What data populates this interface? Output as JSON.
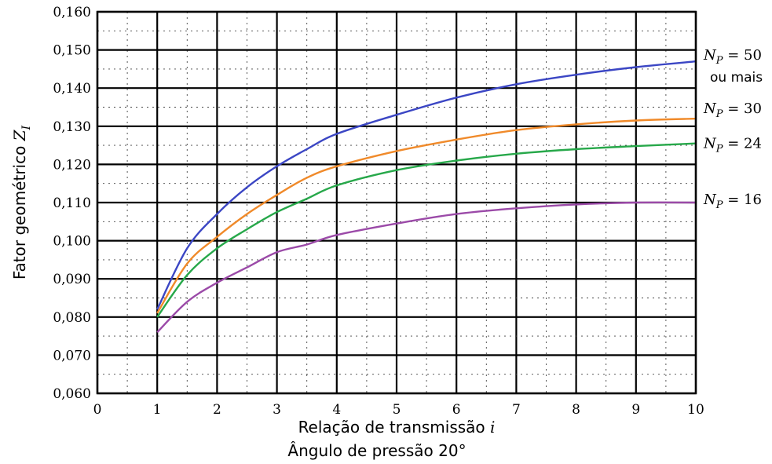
{
  "chart_data": {
    "type": "line",
    "title": "",
    "xlabel": "Relação de transmissão i",
    "xlabel_text": "Relação de transmissão",
    "xlabel_symbol": "i",
    "xlabel2": "Ângulo de pressão 20°",
    "ylabel": "Fator geométrico Z_I",
    "ylabel_text": "Fator geométrico",
    "ylabel_symbol": "Z",
    "ylabel_subscript": "I",
    "xlim": [
      0,
      10
    ],
    "ylim": [
      0.06,
      0.16
    ],
    "x_ticks": [
      "0",
      "1",
      "2",
      "3",
      "4",
      "5",
      "6",
      "7",
      "8",
      "9",
      "10"
    ],
    "y_ticks": [
      "0,060",
      "0,070",
      "0,080",
      "0,090",
      "0,100",
      "0,110",
      "0,120",
      "0,130",
      "0,140",
      "0,150",
      "0,160"
    ],
    "grid": true,
    "legend": "right-inline",
    "series": [
      {
        "name": "N_P = 50 ou mais",
        "label_main": "N",
        "label_sub": "P",
        "label_eq": " = 50",
        "label_extra": "ou mais",
        "color": "#3b46c4",
        "x": [
          1,
          1.5,
          2,
          2.5,
          3,
          3.5,
          4,
          5,
          6,
          7,
          8,
          9,
          10
        ],
        "y": [
          0.082,
          0.098,
          0.107,
          0.114,
          0.1195,
          0.124,
          0.128,
          0.133,
          0.1375,
          0.141,
          0.1435,
          0.1455,
          0.147
        ]
      },
      {
        "name": "N_P = 30",
        "label_main": "N",
        "label_sub": "P",
        "label_eq": " = 30",
        "label_extra": "",
        "color": "#f08a2a",
        "x": [
          1,
          1.5,
          2,
          2.5,
          3,
          3.5,
          4,
          5,
          6,
          7,
          8,
          9,
          10
        ],
        "y": [
          0.081,
          0.094,
          0.101,
          0.107,
          0.112,
          0.1165,
          0.1195,
          0.1235,
          0.1265,
          0.129,
          0.1305,
          0.1315,
          0.132
        ]
      },
      {
        "name": "N_P = 24",
        "label_main": "N",
        "label_sub": "P",
        "label_eq": " = 24",
        "label_extra": "",
        "color": "#27a84a",
        "x": [
          1,
          1.5,
          2,
          2.5,
          3,
          3.5,
          4,
          5,
          6,
          7,
          8,
          9,
          10
        ],
        "y": [
          0.08,
          0.091,
          0.098,
          0.103,
          0.1075,
          0.111,
          0.1145,
          0.1185,
          0.121,
          0.1228,
          0.124,
          0.1248,
          0.1255
        ]
      },
      {
        "name": "N_P = 16",
        "label_main": "N",
        "label_sub": "P",
        "label_eq": " = 16",
        "label_extra": "",
        "color": "#9b4aa8",
        "x": [
          1,
          1.5,
          2,
          2.5,
          3,
          3.5,
          4,
          5,
          6,
          7,
          8,
          9,
          10
        ],
        "y": [
          0.076,
          0.084,
          0.089,
          0.093,
          0.097,
          0.099,
          0.1015,
          0.1045,
          0.107,
          0.1085,
          0.1095,
          0.11,
          0.11
        ]
      }
    ]
  }
}
